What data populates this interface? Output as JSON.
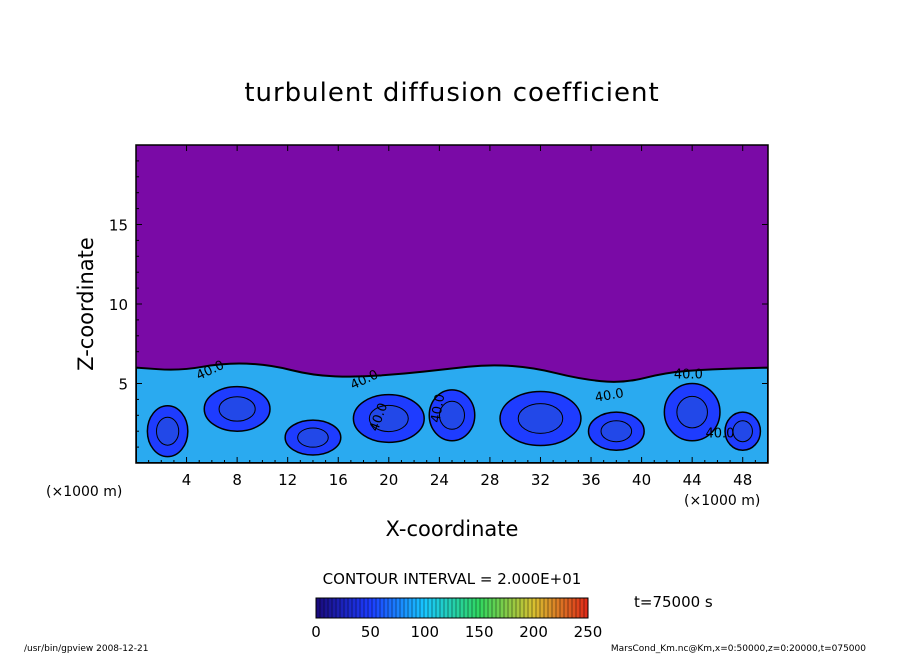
{
  "chart_data": {
    "type": "heatmap",
    "title": "turbulent diffusion coefficient",
    "xlabel": "X-coordinate",
    "ylabel": "Z-coordinate",
    "x_unit": "(×1000 m)",
    "z_unit": "(×1000 m)",
    "xlim": [
      0,
      50
    ],
    "ylim": [
      0,
      20
    ],
    "x_ticks": [
      4,
      8,
      12,
      16,
      20,
      24,
      28,
      32,
      36,
      40,
      44,
      48
    ],
    "y_ticks": [
      5,
      10,
      15
    ],
    "contour_interval_text": "CONTOUR INTERVAL = 2.000E+01",
    "contour_labels": [
      "40.0",
      "40.0",
      "40.0",
      "40.0",
      "40.0",
      "40.0",
      "40.0"
    ],
    "colorbar": {
      "ticks": [
        0,
        50,
        100,
        150,
        200,
        250
      ],
      "range": [
        0,
        250
      ]
    },
    "time_label": "t=75000 s",
    "turbulent_layer_top_km": [
      6.0,
      5.8,
      6.3,
      6.2,
      5.5,
      5.4,
      5.6,
      5.9,
      6.2,
      6.0,
      5.3,
      5.0,
      5.7,
      5.9,
      6.0
    ],
    "turbulent_layer_x_km": [
      0,
      3.5,
      7,
      10.5,
      14,
      17.5,
      21,
      24.5,
      28,
      31.5,
      35,
      38.5,
      42,
      45.5,
      50
    ],
    "grid": false
  },
  "footer": {
    "left": "/usr/bin/gpview   2008-12-21",
    "right": "MarsCond_Km.nc@Km,x=0:50000,z=0:20000,t=075000"
  }
}
